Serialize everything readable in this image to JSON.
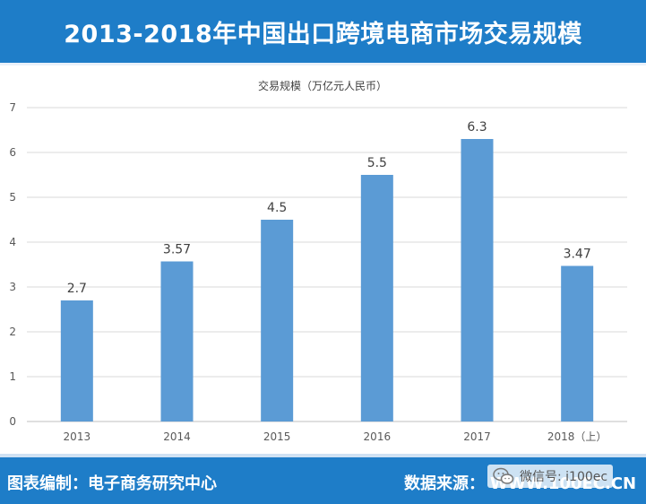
{
  "header": {
    "title": "2013-2018年中国出口跨境电商市场交易规模"
  },
  "chart_data": {
    "type": "bar",
    "title": "交易规模（万亿元人民币）",
    "categories": [
      "2013",
      "2014",
      "2015",
      "2016",
      "2017",
      "2018（上）"
    ],
    "values": [
      2.7,
      3.57,
      4.5,
      5.5,
      6.3,
      3.47
    ],
    "value_labels": [
      "2.7",
      "3.57",
      "4.5",
      "5.5",
      "6.3",
      "3.47"
    ],
    "y_ticks": [
      "0",
      "1",
      "2",
      "3",
      "4",
      "5",
      "6",
      "7"
    ],
    "ylim": [
      0,
      7
    ],
    "grid": true,
    "legend": "none",
    "bar_color": "#5b9bd5",
    "grid_color": "#d9d9d9"
  },
  "footer": {
    "compiler_label": "图表编制：",
    "compiler_name": "电子商务研究中心",
    "source_label": "数据来源：",
    "source_value": "WWW.100EC.CN"
  },
  "watermark": {
    "text": "微信号: i100ec"
  },
  "colors": {
    "brand_blue": "#1e7dc8",
    "bar": "#5b9bd5"
  },
  "icons": {
    "watermark_icon": "wechat-icon"
  }
}
